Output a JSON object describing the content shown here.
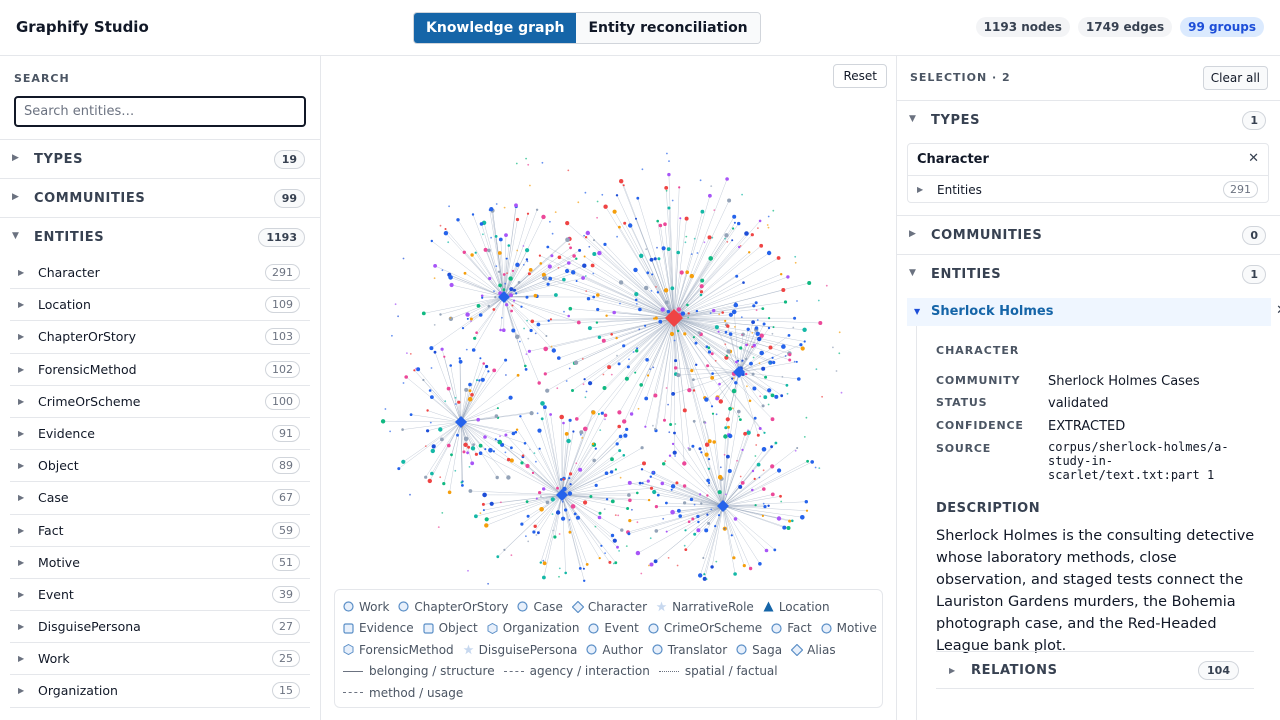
{
  "app": {
    "title": "Graphify Studio"
  },
  "modes": [
    {
      "label": "Knowledge graph",
      "active": true
    },
    {
      "label": "Entity reconciliation",
      "active": false
    }
  ],
  "stats": {
    "nodes": "1193 nodes",
    "edges": "1749 edges",
    "groups": "99 groups"
  },
  "left": {
    "search_label": "SEARCH",
    "search_placeholder": "Search entities…",
    "types": {
      "title": "TYPES",
      "count": "19"
    },
    "communities": {
      "title": "COMMUNITIES",
      "count": "99"
    },
    "entities": {
      "title": "ENTITIES",
      "count": "1193"
    },
    "entity_types": [
      {
        "label": "Character",
        "count": "291"
      },
      {
        "label": "Location",
        "count": "109"
      },
      {
        "label": "ChapterOrStory",
        "count": "103"
      },
      {
        "label": "ForensicMethod",
        "count": "102"
      },
      {
        "label": "CrimeOrScheme",
        "count": "100"
      },
      {
        "label": "Evidence",
        "count": "91"
      },
      {
        "label": "Object",
        "count": "89"
      },
      {
        "label": "Case",
        "count": "67"
      },
      {
        "label": "Fact",
        "count": "59"
      },
      {
        "label": "Motive",
        "count": "51"
      },
      {
        "label": "Event",
        "count": "39"
      },
      {
        "label": "DisguisePersona",
        "count": "27"
      },
      {
        "label": "Work",
        "count": "25"
      },
      {
        "label": "Organization",
        "count": "15"
      }
    ]
  },
  "canvas": {
    "reset_label": "Reset",
    "legend_nodes": [
      {
        "label": "Work",
        "shape": "circle"
      },
      {
        "label": "ChapterOrStory",
        "shape": "circle"
      },
      {
        "label": "Case",
        "shape": "circle"
      },
      {
        "label": "Character",
        "shape": "diamond"
      },
      {
        "label": "NarrativeRole",
        "shape": "star"
      },
      {
        "label": "Location",
        "shape": "triangle"
      },
      {
        "label": "Evidence",
        "shape": "square"
      },
      {
        "label": "Object",
        "shape": "square"
      },
      {
        "label": "Organization",
        "shape": "hex"
      },
      {
        "label": "Event",
        "shape": "circle"
      },
      {
        "label": "CrimeOrScheme",
        "shape": "circle"
      },
      {
        "label": "Fact",
        "shape": "circle"
      },
      {
        "label": "Motive",
        "shape": "circle"
      },
      {
        "label": "ForensicMethod",
        "shape": "hex"
      },
      {
        "label": "DisguisePersona",
        "shape": "star"
      },
      {
        "label": "Author",
        "shape": "circle"
      },
      {
        "label": "Translator",
        "shape": "circle"
      },
      {
        "label": "Saga",
        "shape": "circle"
      },
      {
        "label": "Alias",
        "shape": "diamond"
      }
    ],
    "legend_edges": [
      {
        "label": "belonging / structure",
        "style": "solid"
      },
      {
        "label": "agency / interaction",
        "style": "dashed"
      },
      {
        "label": "spatial / factual",
        "style": "dotted"
      },
      {
        "label": "method / usage",
        "style": "dashed"
      }
    ],
    "colors": {
      "accent": "#1565a8",
      "node": "#2563eb",
      "highlight": "#ef4444",
      "edge": "#94a3b8"
    }
  },
  "right": {
    "selection_title": "SELECTION · 2",
    "clear_label": "Clear all",
    "types": {
      "title": "TYPES",
      "count": "1"
    },
    "type_card": {
      "title": "Character",
      "sub_label": "Entities",
      "sub_count": "291"
    },
    "communities": {
      "title": "COMMUNITIES",
      "count": "0"
    },
    "entities": {
      "title": "ENTITIES",
      "count": "1"
    },
    "entity": {
      "name": "Sherlock Holmes",
      "type": "CHARACTER",
      "community_key": "COMMUNITY",
      "community": "Sherlock Holmes Cases",
      "status_key": "STATUS",
      "status": "validated",
      "confidence_key": "CONFIDENCE",
      "confidence": "EXTRACTED",
      "source_key": "SOURCE",
      "source": "corpus/sherlock-holmes/a-study-in-scarlet/text.txt:part 1",
      "description_title": "DESCRIPTION",
      "description": "Sherlock Holmes is the consulting detective whose laboratory methods, close observation, and staged tests connect the Lauriston Gardens murders, the Bohemia photograph case, and the Red-Headed League bank plot.",
      "relations_title": "RELATIONS",
      "relations_count": "104"
    }
  }
}
